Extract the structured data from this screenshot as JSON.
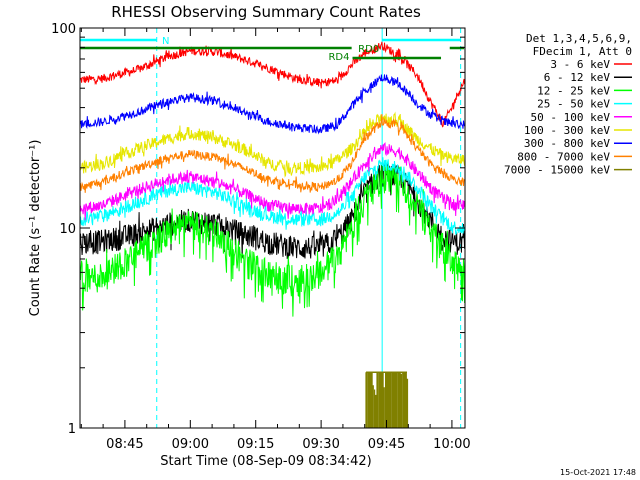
{
  "chart_data": {
    "type": "line",
    "title": "RHESSI Observing Summary Count Rates",
    "xlabel": "Start Time (08-Sep-09 08:34:42)",
    "ylabel": "Count Rate (s⁻¹ detector⁻¹)",
    "yscale": "log",
    "ylim": [
      1,
      100
    ],
    "y_ticks": [
      "1",
      "10",
      "100"
    ],
    "x_ticks": [
      "08:45",
      "09:00",
      "09:15",
      "09:30",
      "09:45",
      "10:00"
    ],
    "xlim_minutes": [
      34.7,
      123
    ],
    "legend_header": [
      "Det 1,3,4,5,6,9,",
      "FDecim 1, Att 0"
    ],
    "legend_position": "right",
    "series": [
      {
        "name": "3 - 6 keV",
        "color": "#ff0000",
        "x": [
          34.7,
          40,
          48,
          55,
          60,
          66,
          72,
          78,
          84,
          90,
          94,
          96,
          100,
          104,
          108,
          112,
          115,
          118,
          120,
          123
        ],
        "y": [
          55,
          56,
          62,
          72,
          77,
          76,
          70,
          63,
          56,
          53,
          55,
          62,
          75,
          82,
          72,
          58,
          43,
          33,
          40,
          55
        ]
      },
      {
        "name": "6 - 12 keV",
        "color": "#000000",
        "x": [
          34.7,
          40,
          48,
          55,
          60,
          66,
          72,
          78,
          84,
          90,
          94,
          97,
          100,
          104,
          108,
          112,
          115,
          118,
          121,
          123
        ],
        "y": [
          8.5,
          8.6,
          9.4,
          10.5,
          11,
          10.5,
          9.4,
          8.5,
          8,
          8,
          9,
          11,
          15,
          19,
          18,
          14,
          11,
          9,
          8.5,
          8.5
        ]
      },
      {
        "name": "12 - 25 keV",
        "color": "#00ff00",
        "x": [
          34.7,
          40,
          48,
          55,
          60,
          66,
          72,
          78,
          84,
          90,
          94,
          97,
          100,
          104,
          108,
          112,
          115,
          118,
          121,
          123
        ],
        "y": [
          5.5,
          5.8,
          7.5,
          9.5,
          10.5,
          9.5,
          7,
          5.8,
          5.5,
          6,
          7.5,
          10,
          14,
          18,
          17,
          13,
          10,
          8,
          6.5,
          6
        ]
      },
      {
        "name": "25 - 50 keV",
        "color": "#00ffff",
        "x": [
          34.7,
          40,
          48,
          55,
          60,
          66,
          72,
          78,
          84,
          90,
          94,
          97,
          100,
          104,
          108,
          112,
          115,
          118,
          121,
          123
        ],
        "y": [
          11,
          11.5,
          13.5,
          15.5,
          16,
          15,
          13,
          11.5,
          11,
          11,
          12,
          14,
          18,
          21,
          20,
          16,
          13,
          11,
          10,
          10
        ]
      },
      {
        "name": "50 - 100 keV",
        "color": "#ff00ff",
        "x": [
          34.7,
          40,
          48,
          55,
          60,
          66,
          72,
          78,
          84,
          90,
          94,
          97,
          100,
          104,
          108,
          112,
          115,
          118,
          121,
          123
        ],
        "y": [
          12.5,
          13,
          15.5,
          17.5,
          18,
          17,
          15,
          13,
          12.5,
          12.5,
          14,
          17,
          21,
          25,
          24,
          19,
          16,
          14,
          13,
          13
        ]
      },
      {
        "name": "100 - 300 keV",
        "color": "#e6e600",
        "x": [
          34.7,
          40,
          48,
          55,
          60,
          66,
          72,
          78,
          84,
          90,
          94,
          97,
          100,
          104,
          108,
          112,
          115,
          118,
          121,
          123
        ],
        "y": [
          20,
          21,
          25,
          28,
          30,
          28,
          25,
          21,
          20,
          20,
          22,
          25,
          30,
          36,
          34,
          28,
          25,
          23,
          22,
          22
        ]
      },
      {
        "name": "300 - 800 keV",
        "color": "#0000ff",
        "x": [
          34.7,
          40,
          48,
          55,
          60,
          66,
          72,
          78,
          84,
          90,
          94,
          96,
          100,
          104,
          108,
          112,
          115,
          118,
          121,
          123
        ],
        "y": [
          33,
          34,
          38,
          43,
          45,
          43,
          38,
          34,
          32,
          31,
          33,
          38,
          48,
          57,
          52,
          42,
          37,
          34,
          33,
          33
        ]
      },
      {
        "name": "800 - 7000 keV",
        "color": "#ff8000",
        "x": [
          34.7,
          40,
          48,
          55,
          60,
          66,
          72,
          78,
          84,
          90,
          94,
          97,
          100,
          104,
          108,
          112,
          115,
          118,
          121,
          123
        ],
        "y": [
          16,
          17,
          20,
          22.5,
          23.5,
          22.5,
          20,
          17.5,
          16.5,
          16,
          17.5,
          21,
          28,
          34,
          32,
          25,
          21,
          19,
          17,
          17
        ]
      },
      {
        "name": "7000 - 15000 keV",
        "color": "#808000",
        "x": [
          100,
          102,
          104,
          106,
          108,
          110
        ],
        "y": [
          1,
          1.9,
          1.9,
          1.9,
          1.9,
          1
        ]
      }
    ],
    "annotations": [
      {
        "label": "N",
        "kind": "night"
      },
      {
        "label": "RD4",
        "kind": "rate-decimation"
      },
      {
        "label": "RD0",
        "kind": "rate-decimation"
      }
    ],
    "vertical_markers_minutes": [
      34.7,
      52.3,
      104,
      122
    ],
    "timestamp": "15-Oct-2021 17:48"
  }
}
